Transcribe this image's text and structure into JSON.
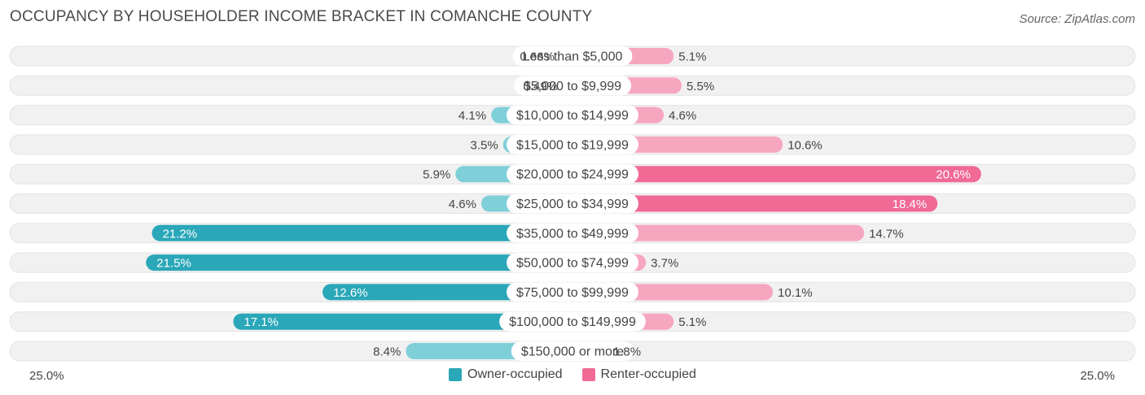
{
  "title": "OCCUPANCY BY HOUSEHOLDER INCOME BRACKET IN COMANCHE COUNTY",
  "source": "Source: ZipAtlas.com",
  "colors": {
    "owner_strong": "#2aa7b8",
    "owner_light": "#7fcfd9",
    "renter_strong": "#f06a95",
    "renter_light": "#f7a6c0",
    "track": "#f1f1f1"
  },
  "axis": {
    "left_label": "25.0%",
    "right_label": "25.0%"
  },
  "legend": {
    "owner": "Owner-occupied",
    "renter": "Renter-occupied"
  },
  "chart_data": {
    "type": "bar",
    "orientation": "diverging-horizontal",
    "title": "OCCUPANCY BY HOUSEHOLDER INCOME BRACKET IN COMANCHE COUNTY",
    "xlim": [
      -25,
      25
    ],
    "categories": [
      "Less than $5,000",
      "$5,000 to $9,999",
      "$10,000 to $14,999",
      "$15,000 to $19,999",
      "$20,000 to $24,999",
      "$25,000 to $34,999",
      "$35,000 to $49,999",
      "$50,000 to $74,999",
      "$75,000 to $99,999",
      "$100,000 to $149,999",
      "$150,000 or more"
    ],
    "series": [
      {
        "name": "Owner-occupied",
        "values": [
          0.66,
          0.49,
          4.1,
          3.5,
          5.9,
          4.6,
          21.2,
          21.5,
          12.6,
          17.1,
          8.4
        ],
        "labels": [
          "0.66%",
          "0.49%",
          "4.1%",
          "3.5%",
          "5.9%",
          "4.6%",
          "21.2%",
          "21.5%",
          "12.6%",
          "17.1%",
          "8.4%"
        ]
      },
      {
        "name": "Renter-occupied",
        "values": [
          5.1,
          5.5,
          4.6,
          10.6,
          20.6,
          18.4,
          14.7,
          3.7,
          10.1,
          5.1,
          1.8
        ],
        "labels": [
          "5.1%",
          "5.5%",
          "4.6%",
          "10.6%",
          "20.6%",
          "18.4%",
          "14.7%",
          "3.7%",
          "10.1%",
          "5.1%",
          "1.8%"
        ]
      }
    ]
  }
}
